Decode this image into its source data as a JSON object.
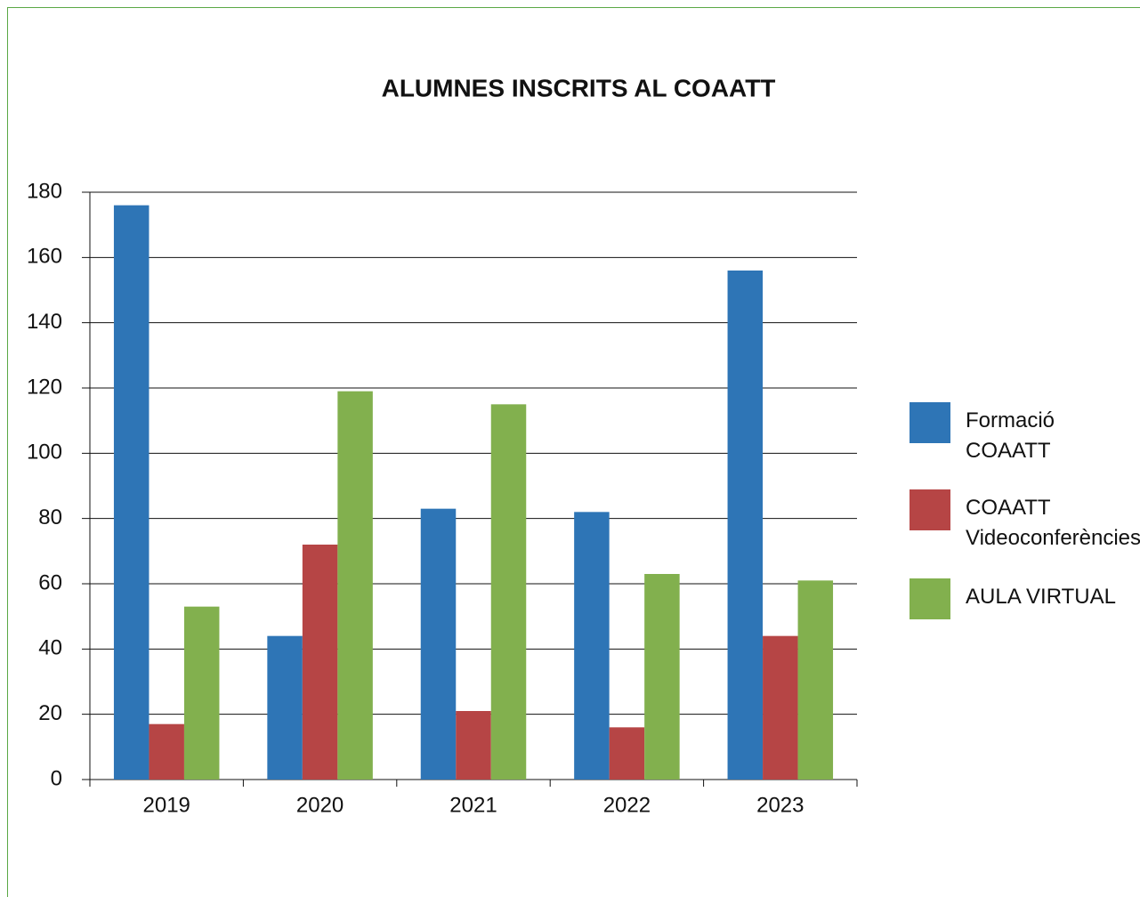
{
  "chart_data": {
    "type": "bar",
    "title": "ALUMNES INSCRITS AL COAATT",
    "categories": [
      "2019",
      "2020",
      "2021",
      "2022",
      "2023"
    ],
    "series": [
      {
        "name": "Formació COAATT",
        "color": "#2e75b6",
        "values": [
          176,
          44,
          83,
          82,
          156
        ]
      },
      {
        "name": "COAATT Videoconferències",
        "color": "#b64545",
        "values": [
          17,
          72,
          21,
          16,
          44
        ]
      },
      {
        "name": "AULA VIRTUAL",
        "color": "#82b04e",
        "values": [
          53,
          119,
          115,
          63,
          61
        ]
      }
    ],
    "ylim": [
      0,
      180
    ],
    "yticks": [
      0,
      20,
      40,
      60,
      80,
      100,
      120,
      140,
      160,
      180
    ],
    "grid": true,
    "legend": "right"
  }
}
